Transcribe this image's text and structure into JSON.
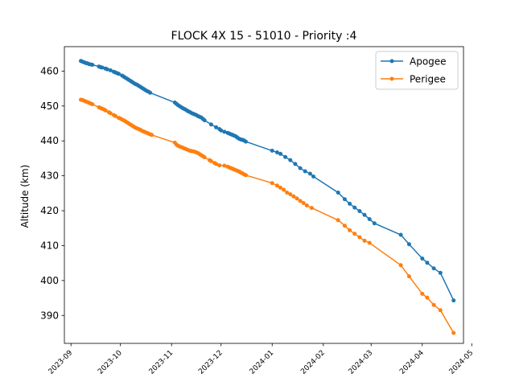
{
  "chart_data": {
    "type": "line",
    "title": "FLOCK 4X 15 - 51010 - Priority :4",
    "xlabel": "",
    "ylabel": "Altitude (km)",
    "x_tick_labels": [
      "2023-09",
      "2023-10",
      "2023-11",
      "2023-12",
      "2024-01",
      "2024-02",
      "2024-03",
      "2024-04",
      "2024-05"
    ],
    "x_tick_dates": [
      "2023-09-01",
      "2023-10-01",
      "2023-11-01",
      "2023-12-01",
      "2024-01-01",
      "2024-02-01",
      "2024-03-01",
      "2024-04-01",
      "2024-05-01"
    ],
    "y_ticks": [
      390,
      400,
      410,
      420,
      430,
      440,
      450,
      460
    ],
    "xlim": [
      "2023-08-28",
      "2024-04-26"
    ],
    "ylim": [
      382,
      467
    ],
    "grid": false,
    "legend_position": "top-right",
    "series": [
      {
        "name": "Apogee",
        "color": "#1f77b4",
        "points": [
          [
            "2023-09-07",
            462.9
          ],
          [
            "2023-09-08",
            462.7
          ],
          [
            "2023-09-09",
            462.5
          ],
          [
            "2023-09-10",
            462.3
          ],
          [
            "2023-09-11",
            462.2
          ],
          [
            "2023-09-12",
            462.0
          ],
          [
            "2023-09-13",
            461.9
          ],
          [
            "2023-09-14",
            461.8
          ],
          [
            "2023-09-18",
            461.3
          ],
          [
            "2023-09-19",
            461.1
          ],
          [
            "2023-09-20",
            461.0
          ],
          [
            "2023-09-22",
            460.7
          ],
          [
            "2023-09-23",
            460.5
          ],
          [
            "2023-09-25",
            460.2
          ],
          [
            "2023-09-27",
            459.8
          ],
          [
            "2023-09-28",
            459.6
          ],
          [
            "2023-09-29",
            459.4
          ],
          [
            "2023-09-30",
            459.2
          ],
          [
            "2023-10-02",
            458.7
          ],
          [
            "2023-10-03",
            458.4
          ],
          [
            "2023-10-04",
            458.1
          ],
          [
            "2023-10-05",
            457.8
          ],
          [
            "2023-10-06",
            457.5
          ],
          [
            "2023-10-07",
            457.2
          ],
          [
            "2023-10-08",
            456.9
          ],
          [
            "2023-10-09",
            456.6
          ],
          [
            "2023-10-10",
            456.3
          ],
          [
            "2023-10-11",
            456.1
          ],
          [
            "2023-10-12",
            455.8
          ],
          [
            "2023-10-13",
            455.5
          ],
          [
            "2023-10-14",
            455.2
          ],
          [
            "2023-10-15",
            454.9
          ],
          [
            "2023-10-16",
            454.6
          ],
          [
            "2023-10-17",
            454.3
          ],
          [
            "2023-10-18",
            454.1
          ],
          [
            "2023-10-19",
            453.8
          ],
          [
            "2023-11-03",
            451.0
          ],
          [
            "2023-11-04",
            450.6
          ],
          [
            "2023-11-05",
            450.2
          ],
          [
            "2023-11-06",
            449.9
          ],
          [
            "2023-11-07",
            449.6
          ],
          [
            "2023-11-08",
            449.3
          ],
          [
            "2023-11-09",
            449.1
          ],
          [
            "2023-11-10",
            448.8
          ],
          [
            "2023-11-11",
            448.5
          ],
          [
            "2023-11-12",
            448.3
          ],
          [
            "2023-11-13",
            448.0
          ],
          [
            "2023-11-14",
            447.8
          ],
          [
            "2023-11-15",
            447.6
          ],
          [
            "2023-11-16",
            447.4
          ],
          [
            "2023-11-17",
            447.1
          ],
          [
            "2023-11-18",
            446.9
          ],
          [
            "2023-11-19",
            446.7
          ],
          [
            "2023-11-20",
            446.3
          ],
          [
            "2023-11-21",
            445.9
          ],
          [
            "2023-11-25",
            444.7
          ],
          [
            "2023-11-28",
            443.9
          ],
          [
            "2023-11-30",
            443.4
          ],
          [
            "2023-12-01",
            443.0
          ],
          [
            "2023-12-03",
            442.6
          ],
          [
            "2023-12-05",
            442.3
          ],
          [
            "2023-12-06",
            442.1
          ],
          [
            "2023-12-07",
            441.9
          ],
          [
            "2023-12-08",
            441.7
          ],
          [
            "2023-12-09",
            441.5
          ],
          [
            "2023-12-10",
            441.3
          ],
          [
            "2023-12-11",
            440.9
          ],
          [
            "2023-12-12",
            440.6
          ],
          [
            "2023-12-13",
            440.4
          ],
          [
            "2023-12-14",
            440.3
          ],
          [
            "2023-12-15",
            440.1
          ],
          [
            "2023-12-16",
            439.8
          ],
          [
            "2024-01-01",
            437.2
          ],
          [
            "2024-01-04",
            436.7
          ],
          [
            "2024-01-06",
            436.3
          ],
          [
            "2024-01-09",
            435.4
          ],
          [
            "2024-01-12",
            434.5
          ],
          [
            "2024-01-15",
            433.4
          ],
          [
            "2024-01-18",
            432.2
          ],
          [
            "2024-01-21",
            431.3
          ],
          [
            "2024-01-24",
            430.6
          ],
          [
            "2024-01-26",
            429.8
          ],
          [
            "2024-02-10",
            425.2
          ],
          [
            "2024-02-14",
            423.3
          ],
          [
            "2024-02-17",
            422.0
          ],
          [
            "2024-02-20",
            420.9
          ],
          [
            "2024-02-23",
            419.9
          ],
          [
            "2024-02-26",
            418.8
          ],
          [
            "2024-02-29",
            417.6
          ],
          [
            "2024-03-03",
            416.4
          ],
          [
            "2024-03-19",
            413.1
          ],
          [
            "2024-03-24",
            410.4
          ],
          [
            "2024-04-01",
            406.3
          ],
          [
            "2024-04-04",
            405.1
          ],
          [
            "2024-04-08",
            403.5
          ],
          [
            "2024-04-12",
            402.2
          ],
          [
            "2024-04-20",
            394.3
          ]
        ]
      },
      {
        "name": "Perigee",
        "color": "#ff7f0e",
        "points": [
          [
            "2023-09-07",
            451.8
          ],
          [
            "2023-09-08",
            451.7
          ],
          [
            "2023-09-09",
            451.5
          ],
          [
            "2023-09-10",
            451.3
          ],
          [
            "2023-09-11",
            451.1
          ],
          [
            "2023-09-12",
            450.9
          ],
          [
            "2023-09-13",
            450.7
          ],
          [
            "2023-09-14",
            450.5
          ],
          [
            "2023-09-18",
            449.6
          ],
          [
            "2023-09-19",
            449.4
          ],
          [
            "2023-09-20",
            449.2
          ],
          [
            "2023-09-21",
            449.0
          ],
          [
            "2023-09-22",
            448.7
          ],
          [
            "2023-09-24",
            448.2
          ],
          [
            "2023-09-25",
            447.9
          ],
          [
            "2023-09-27",
            447.4
          ],
          [
            "2023-09-28",
            447.1
          ],
          [
            "2023-09-30",
            446.6
          ],
          [
            "2023-10-01",
            446.4
          ],
          [
            "2023-10-02",
            446.1
          ],
          [
            "2023-10-03",
            445.9
          ],
          [
            "2023-10-04",
            445.6
          ],
          [
            "2023-10-05",
            445.3
          ],
          [
            "2023-10-06",
            445.0
          ],
          [
            "2023-10-07",
            444.7
          ],
          [
            "2023-10-08",
            444.4
          ],
          [
            "2023-10-09",
            444.1
          ],
          [
            "2023-10-10",
            443.8
          ],
          [
            "2023-10-11",
            443.6
          ],
          [
            "2023-10-12",
            443.4
          ],
          [
            "2023-10-13",
            443.2
          ],
          [
            "2023-10-14",
            442.9
          ],
          [
            "2023-10-15",
            442.7
          ],
          [
            "2023-10-16",
            442.5
          ],
          [
            "2023-10-17",
            442.3
          ],
          [
            "2023-10-18",
            442.1
          ],
          [
            "2023-10-19",
            441.9
          ],
          [
            "2023-10-20",
            441.7
          ],
          [
            "2023-11-03",
            439.5
          ],
          [
            "2023-11-04",
            438.9
          ],
          [
            "2023-11-05",
            438.6
          ],
          [
            "2023-11-06",
            438.4
          ],
          [
            "2023-11-07",
            438.2
          ],
          [
            "2023-11-08",
            438.0
          ],
          [
            "2023-11-09",
            437.8
          ],
          [
            "2023-11-10",
            437.6
          ],
          [
            "2023-11-11",
            437.4
          ],
          [
            "2023-11-12",
            437.2
          ],
          [
            "2023-11-13",
            437.1
          ],
          [
            "2023-11-14",
            437.0
          ],
          [
            "2023-11-15",
            436.9
          ],
          [
            "2023-11-16",
            436.7
          ],
          [
            "2023-11-17",
            436.5
          ],
          [
            "2023-11-18",
            436.2
          ],
          [
            "2023-11-19",
            435.9
          ],
          [
            "2023-11-20",
            435.6
          ],
          [
            "2023-11-21",
            435.3
          ],
          [
            "2023-11-24",
            434.5
          ],
          [
            "2023-11-25",
            434.2
          ],
          [
            "2023-11-27",
            433.7
          ],
          [
            "2023-11-28",
            433.4
          ],
          [
            "2023-11-30",
            433.0
          ],
          [
            "2023-12-03",
            432.9
          ],
          [
            "2023-12-05",
            432.6
          ],
          [
            "2023-12-06",
            432.4
          ],
          [
            "2023-12-07",
            432.2
          ],
          [
            "2023-12-08",
            432.0
          ],
          [
            "2023-12-09",
            431.8
          ],
          [
            "2023-12-10",
            431.6
          ],
          [
            "2023-12-11",
            431.4
          ],
          [
            "2023-12-12",
            431.2
          ],
          [
            "2023-12-13",
            430.9
          ],
          [
            "2023-12-14",
            430.7
          ],
          [
            "2023-12-15",
            430.4
          ],
          [
            "2023-12-16",
            430.2
          ],
          [
            "2024-01-01",
            427.9
          ],
          [
            "2024-01-04",
            427.2
          ],
          [
            "2024-01-06",
            426.6
          ],
          [
            "2024-01-08",
            426.0
          ],
          [
            "2024-01-10",
            425.2
          ],
          [
            "2024-01-12",
            424.7
          ],
          [
            "2024-01-14",
            424.1
          ],
          [
            "2024-01-16",
            423.5
          ],
          [
            "2024-01-18",
            422.8
          ],
          [
            "2024-01-20",
            422.2
          ],
          [
            "2024-01-22",
            421.5
          ],
          [
            "2024-01-25",
            420.8
          ],
          [
            "2024-02-10",
            417.3
          ],
          [
            "2024-02-14",
            415.7
          ],
          [
            "2024-02-17",
            414.4
          ],
          [
            "2024-02-20",
            413.4
          ],
          [
            "2024-02-23",
            412.4
          ],
          [
            "2024-02-26",
            411.4
          ],
          [
            "2024-02-29",
            410.8
          ],
          [
            "2024-03-19",
            404.4
          ],
          [
            "2024-03-24",
            401.2
          ],
          [
            "2024-04-01",
            396.2
          ],
          [
            "2024-04-04",
            395.1
          ],
          [
            "2024-04-08",
            393.0
          ],
          [
            "2024-04-12",
            391.5
          ],
          [
            "2024-04-20",
            385.0
          ]
        ]
      }
    ]
  }
}
